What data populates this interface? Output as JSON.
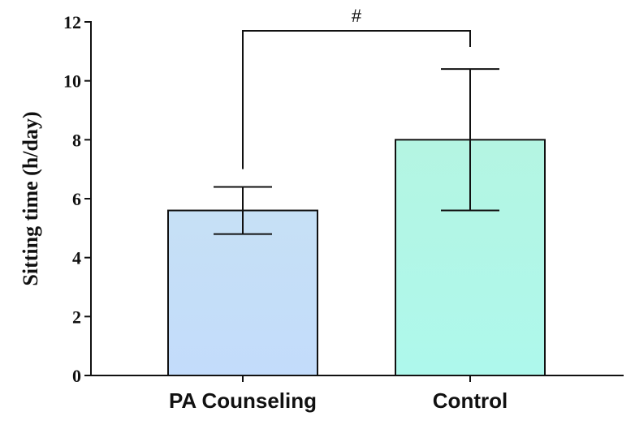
{
  "chart_data": {
    "type": "bar",
    "categories": [
      "PA Counseling",
      "Control"
    ],
    "values": [
      5.6,
      8.0
    ],
    "error": [
      0.8,
      2.4
    ],
    "ylabel": "Sitting time (h/day)",
    "xlabel": "",
    "ylim": [
      0,
      12
    ],
    "yticks": [
      0,
      2,
      4,
      6,
      8,
      10,
      12
    ],
    "colors": [
      "#c4dff6",
      "#b5f5e4"
    ],
    "significance": {
      "label": "#",
      "between": [
        0,
        1
      ]
    },
    "grid": false
  }
}
